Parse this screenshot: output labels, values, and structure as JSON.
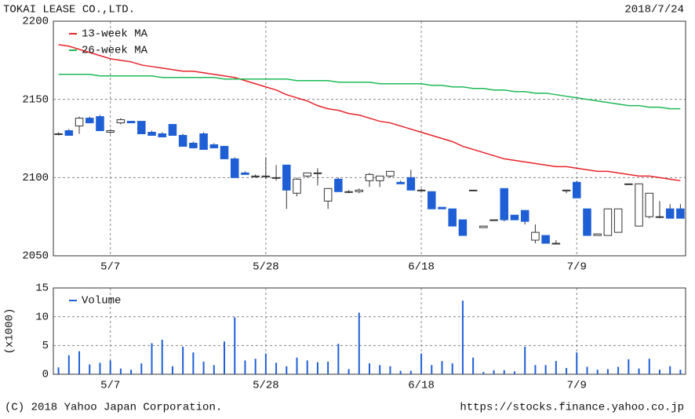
{
  "chart_data": [
    {
      "type": "candlestick",
      "title": "TOKAI LEASE CO.,LTD.",
      "date": "2018/7/24",
      "categories": [
        null,
        null,
        null,
        null,
        null,
        "5/7",
        null,
        null,
        null,
        null,
        null,
        null,
        null,
        null,
        null,
        null,
        null,
        null,
        null,
        null,
        "5/28",
        null,
        null,
        null,
        null,
        null,
        null,
        null,
        null,
        null,
        null,
        null,
        null,
        null,
        null,
        "6/18",
        null,
        null,
        null,
        null,
        null,
        null,
        null,
        null,
        null,
        null,
        null,
        null,
        null,
        null,
        "7/9",
        null,
        null,
        null,
        null,
        null,
        null,
        null,
        null,
        null,
        null
      ],
      "open": [
        2128,
        2130,
        2133,
        2138,
        2139,
        2129,
        2135,
        2136,
        2136,
        2129,
        2128,
        2134,
        2127,
        2122,
        2128,
        2121,
        2120,
        2112,
        2103,
        2101,
        2101,
        2100,
        2108,
        2090,
        2101,
        2103,
        2085,
        2099,
        2091,
        2091,
        2098,
        2098,
        2101,
        2097,
        2100,
        2092,
        2091,
        2081,
        2080,
        2073,
        2092,
        2068,
        2073,
        2093,
        2076,
        2079,
        2060,
        2063,
        2058,
        2092,
        2097,
        2080,
        2063,
        2063,
        2065,
        2096,
        2069,
        2075,
        2075,
        2080,
        2080
      ],
      "high": [
        2129,
        2131,
        2139,
        2139,
        2140,
        2131,
        2138,
        2136,
        2136,
        2130,
        2129,
        2134,
        2128,
        2123,
        2129,
        2122,
        2120,
        2113,
        2104,
        2102,
        2113,
        2108,
        2108,
        2100,
        2103,
        2106,
        2093,
        2100,
        2092,
        2093,
        2103,
        2101,
        2104,
        2098,
        2105,
        2093,
        2091,
        2081,
        2080,
        2073,
        2092,
        2069,
        2073,
        2093,
        2076,
        2079,
        2070,
        2063,
        2060,
        2092,
        2098,
        2080,
        2064,
        2080,
        2080,
        2096,
        2096,
        2090,
        2085,
        2083,
        2083
      ],
      "low": [
        2127,
        2127,
        2128,
        2135,
        2130,
        2128,
        2134,
        2135,
        2128,
        2127,
        2126,
        2127,
        2120,
        2119,
        2118,
        2119,
        2112,
        2100,
        2102,
        2100,
        2099,
        2098,
        2080,
        2088,
        2100,
        2095,
        2080,
        2091,
        2090,
        2090,
        2094,
        2094,
        2100,
        2096,
        2092,
        2091,
        2080,
        2080,
        2069,
        2063,
        2092,
        2068,
        2073,
        2072,
        2073,
        2070,
        2058,
        2058,
        2058,
        2090,
        2087,
        2063,
        2063,
        2063,
        2065,
        2096,
        2069,
        2074,
        2074,
        2074,
        2074
      ],
      "close": [
        2128,
        2127,
        2138,
        2135,
        2130,
        2130,
        2137,
        2135,
        2128,
        2127,
        2126,
        2127,
        2120,
        2119,
        2118,
        2119,
        2112,
        2100,
        2102,
        2101,
        2101,
        2100,
        2092,
        2099,
        2103,
        2103,
        2093,
        2091,
        2091,
        2092,
        2102,
        2101,
        2104,
        2096,
        2092,
        2092,
        2080,
        2080,
        2069,
        2063,
        2092,
        2069,
        2073,
        2073,
        2073,
        2072,
        2065,
        2058,
        2058,
        2092,
        2087,
        2063,
        2064,
        2080,
        2080,
        2096,
        2096,
        2090,
        2075,
        2074,
        2074
      ],
      "up_color": "#ffffff",
      "down_color": "#1f5fd6",
      "series": [
        {
          "name": "13-week MA",
          "color": "#e8232a",
          "values": [
            2185,
            2184,
            2182,
            2180,
            2178,
            2176,
            2175,
            2174,
            2172,
            2171,
            2170,
            2169,
            2168,
            2168,
            2167,
            2166,
            2165,
            2164,
            2162,
            2160,
            2158,
            2156,
            2153,
            2151,
            2149,
            2146,
            2144,
            2143,
            2141,
            2140,
            2138,
            2136,
            2135,
            2133,
            2131,
            2129,
            2127,
            2125,
            2123,
            2120,
            2118,
            2116,
            2114,
            2112,
            2111,
            2110,
            2109,
            2108,
            2107,
            2107,
            2106,
            2105,
            2104,
            2104,
            2103,
            2102,
            2101,
            2101,
            2100,
            2099,
            2098
          ]
        },
        {
          "name": "26-week MA",
          "color": "#1db954",
          "values": [
            2166,
            2166,
            2166,
            2166,
            2165,
            2165,
            2165,
            2165,
            2165,
            2165,
            2164,
            2164,
            2164,
            2164,
            2164,
            2164,
            2163,
            2163,
            2163,
            2163,
            2163,
            2163,
            2163,
            2162,
            2162,
            2162,
            2162,
            2161,
            2161,
            2161,
            2161,
            2160,
            2160,
            2160,
            2160,
            2160,
            2159,
            2159,
            2158,
            2158,
            2157,
            2157,
            2156,
            2156,
            2155,
            2155,
            2154,
            2154,
            2153,
            2152,
            2151,
            2150,
            2149,
            2148,
            2147,
            2146,
            2146,
            2145,
            2145,
            2144,
            2144
          ]
        }
      ],
      "ylim": [
        2050,
        2200
      ],
      "yticks": [
        2050,
        2100,
        2150,
        2200
      ],
      "grid": true
    },
    {
      "type": "bar",
      "ylabel": "(x1000)",
      "categories": [
        null,
        null,
        null,
        null,
        null,
        "5/7",
        null,
        null,
        null,
        null,
        null,
        null,
        null,
        null,
        null,
        null,
        null,
        null,
        null,
        null,
        "5/28",
        null,
        null,
        null,
        null,
        null,
        null,
        null,
        null,
        null,
        null,
        null,
        null,
        null,
        null,
        "6/18",
        null,
        null,
        null,
        null,
        null,
        null,
        null,
        null,
        null,
        null,
        null,
        null,
        null,
        null,
        "7/9",
        null,
        null,
        null,
        null,
        null,
        null,
        null,
        null,
        null,
        null
      ],
      "series": [
        {
          "name": "Volume",
          "color": "#1f5fd6",
          "values": [
            1.2,
            3.3,
            4,
            1.7,
            2,
            2.4,
            1,
            0.8,
            1.9,
            5.4,
            6,
            1.4,
            4.8,
            3.8,
            2.2,
            1.6,
            5.7,
            9.9,
            2.4,
            2.7,
            3.6,
            2,
            1.4,
            2.9,
            2.4,
            2.1,
            2.2,
            5.3,
            0.9,
            10.7,
            1.9,
            1.6,
            1.4,
            0.6,
            0.6,
            3.6,
            1.6,
            2.3,
            1.9,
            12.8,
            2.9,
            0.4,
            0.7,
            0.7,
            0.5,
            4.8,
            1.6,
            1.6,
            2.3,
            1.1,
            3.8,
            1.3,
            0.8,
            0.9,
            1.3,
            2.6,
            1.0,
            2.7,
            0.8,
            1.4,
            0.8
          ]
        }
      ],
      "ylim": [
        0,
        15
      ],
      "yticks": [
        0,
        5,
        10,
        15
      ],
      "grid": true
    }
  ],
  "footer": {
    "copyright": "(C) 2018 Yahoo Japan Corporation.",
    "url": "https://stocks.finance.yahoo.co.jp"
  }
}
